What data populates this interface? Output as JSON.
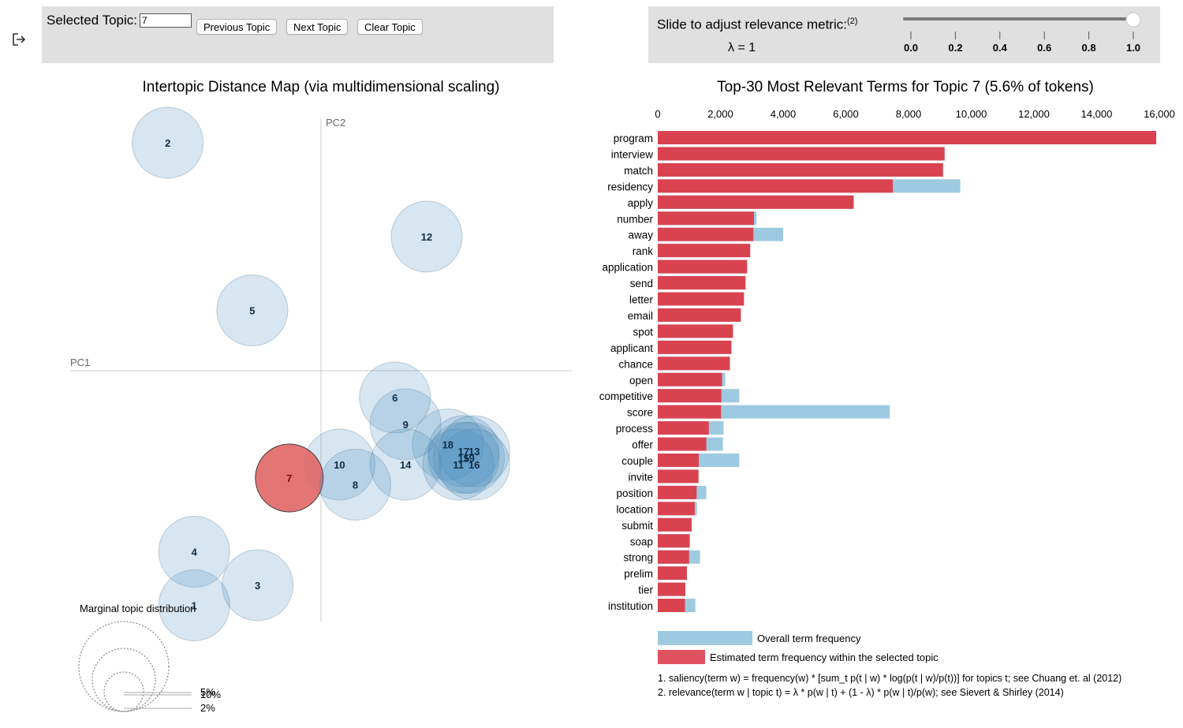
{
  "controls": {
    "selected_topic_label": "Selected Topic:",
    "selected_topic_value": "7",
    "previous_label": "Previous Topic",
    "next_label": "Next Topic",
    "clear_label": "Clear Topic",
    "slider_label": "Slide to adjust relevance metric:",
    "slider_footnote": "(2)",
    "lambda_text": "λ = 1",
    "lambda_value": 1,
    "slider_ticks": [
      "0.0",
      "0.2",
      "0.4",
      "0.6",
      "0.8",
      "1.0"
    ]
  },
  "icons": {
    "export": "export-icon"
  },
  "colors": {
    "topic_fill": "#a6c8dd",
    "topic_stroke": "#8aa5b8",
    "selected_fill": "#e06666",
    "overall_bar": "#9ecae1",
    "topic_bar": "#d9434f",
    "panel_bg": "#e0e0e0"
  },
  "chart_data": [
    {
      "type": "scatter",
      "title": "Intertopic Distance Map (via multidimensional scaling)",
      "xlabel": "PC1",
      "ylabel": "PC2",
      "selected_topic": "7",
      "topics": [
        {
          "label": "2",
          "x": -0.29,
          "y": 0.34
        },
        {
          "label": "12",
          "x": 0.2,
          "y": 0.2
        },
        {
          "label": "5",
          "x": -0.13,
          "y": 0.09
        },
        {
          "label": "6",
          "x": 0.14,
          "y": -0.04
        },
        {
          "label": "9",
          "x": 0.16,
          "y": -0.08
        },
        {
          "label": "18",
          "x": 0.24,
          "y": -0.11
        },
        {
          "label": "17",
          "x": 0.27,
          "y": -0.12
        },
        {
          "label": "13",
          "x": 0.29,
          "y": -0.12
        },
        {
          "label": "19",
          "x": 0.28,
          "y": -0.13
        },
        {
          "label": "15",
          "x": 0.27,
          "y": -0.13
        },
        {
          "label": "11",
          "x": 0.26,
          "y": -0.14
        },
        {
          "label": "16",
          "x": 0.29,
          "y": -0.14
        },
        {
          "label": "10",
          "x": 0.035,
          "y": -0.14
        },
        {
          "label": "14",
          "x": 0.16,
          "y": -0.14
        },
        {
          "label": "7",
          "x": -0.06,
          "y": -0.16
        },
        {
          "label": "8",
          "x": 0.065,
          "y": -0.17
        },
        {
          "label": "4",
          "x": -0.24,
          "y": -0.27
        },
        {
          "label": "3",
          "x": -0.12,
          "y": -0.32
        },
        {
          "label": "1",
          "x": -0.24,
          "y": -0.35
        }
      ],
      "size_legend": {
        "title": "Marginal topic distribution",
        "items": [
          {
            "label": "2%",
            "value": 2
          },
          {
            "label": "5%",
            "value": 5
          },
          {
            "label": "10%",
            "value": 10
          }
        ]
      }
    },
    {
      "type": "bar",
      "orientation": "horizontal",
      "title": "Top-30 Most Relevant Terms for Topic 7 (5.6% of tokens)",
      "xlim": [
        0,
        16000
      ],
      "x_ticks": [
        "0",
        "2,000",
        "4,000",
        "6,000",
        "8,000",
        "10,000",
        "12,000",
        "14,000",
        "16,000"
      ],
      "categories": [
        "program",
        "interview",
        "match",
        "residency",
        "apply",
        "number",
        "away",
        "rank",
        "application",
        "send",
        "letter",
        "email",
        "spot",
        "applicant",
        "chance",
        "open",
        "competitive",
        "score",
        "process",
        "offer",
        "couple",
        "invite",
        "position",
        "location",
        "submit",
        "soap",
        "strong",
        "prelim",
        "tier",
        "institution"
      ],
      "series": [
        {
          "name": "Overall term frequency",
          "values": [
            15900,
            9150,
            9100,
            9650,
            6250,
            3150,
            4000,
            2950,
            2850,
            2800,
            2750,
            2650,
            2400,
            2350,
            2300,
            2150,
            2600,
            7400,
            2100,
            2080,
            2600,
            1300,
            1550,
            1250,
            1080,
            1020,
            1350,
            930,
            880,
            1200
          ]
        },
        {
          "name": "Estimated term frequency within the selected topic",
          "values": [
            15900,
            9150,
            9100,
            7500,
            6250,
            3070,
            3050,
            2950,
            2850,
            2800,
            2750,
            2650,
            2400,
            2350,
            2300,
            2050,
            2030,
            2020,
            1630,
            1550,
            1310,
            1300,
            1240,
            1180,
            1080,
            1020,
            1000,
            930,
            880,
            870
          ]
        }
      ],
      "footnotes": [
        "1. saliency(term w) = frequency(w) * [sum_t p(t | w) * log(p(t | w)/p(t))] for topics t; see Chuang et. al (2012)",
        "2. relevance(term w | topic t) = λ * p(w | t) + (1 - λ) * p(w | t)/p(w); see Sievert & Shirley (2014)"
      ]
    }
  ]
}
